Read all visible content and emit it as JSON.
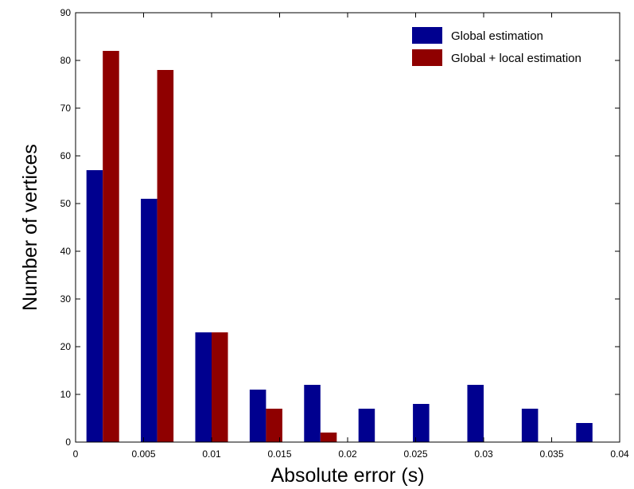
{
  "chart_data": {
    "type": "bar",
    "xlabel": "Absolute error (s)",
    "ylabel": "Number of vertices",
    "xlim": [
      0,
      0.04
    ],
    "ylim": [
      0,
      90
    ],
    "xticks": [
      "0",
      "0.005",
      "0.01",
      "0.015",
      "0.02",
      "0.025",
      "0.03",
      "0.035",
      "0.04"
    ],
    "yticks": [
      "0",
      "10",
      "20",
      "30",
      "40",
      "50",
      "60",
      "70",
      "80",
      "90"
    ],
    "bin_centers": [
      0.002,
      0.006,
      0.01,
      0.014,
      0.018,
      0.022,
      0.026,
      0.03,
      0.034,
      0.038
    ],
    "bar_width": 0.0012,
    "grid": false,
    "legend_position": "top-right",
    "series": [
      {
        "name": "Global estimation",
        "color": "#00008f",
        "values": [
          57,
          51,
          23,
          11,
          12,
          7,
          8,
          12,
          7,
          4
        ]
      },
      {
        "name": "Global + local estimation",
        "color": "#8f0000",
        "values": [
          82,
          78,
          23,
          7,
          2,
          0,
          0,
          0,
          0,
          0
        ]
      }
    ]
  }
}
